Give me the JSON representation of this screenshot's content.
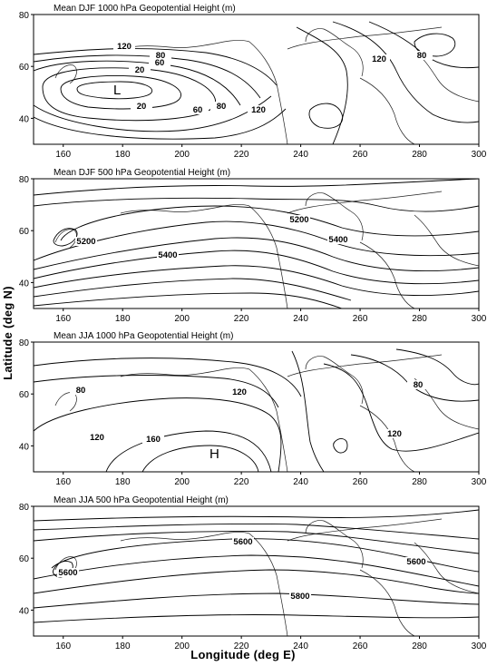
{
  "axes": {
    "ylabel": "Latitude (deg N)",
    "xlabel": "Longitude (deg E)"
  },
  "panels": [
    {
      "title": "Mean DJF 1000 hPa Geopotential Height (m)",
      "contour_labels": [
        "120",
        "80",
        "60",
        "20",
        "20",
        "60",
        "80",
        "120",
        "120",
        "80"
      ],
      "markers": [
        "L"
      ]
    },
    {
      "title": "Mean DJF 500 hPa Geopotential Height (m)",
      "contour_labels": [
        "5200",
        "5400",
        "5200",
        "5400"
      ],
      "markers": []
    },
    {
      "title": "Mean JJA 1000 hPa Geopotential Height (m)",
      "contour_labels": [
        "80",
        "120",
        "160",
        "120",
        "120",
        "80"
      ],
      "markers": [
        "H"
      ]
    },
    {
      "title": "Mean JJA 500 hPa Geopotential Height (m)",
      "contour_labels": [
        "5600",
        "5600",
        "5800",
        "5600"
      ],
      "markers": []
    }
  ],
  "chart_data": {
    "type": "contour_map",
    "x_ticks": [
      "160",
      "180",
      "200",
      "220",
      "240",
      "260",
      "280",
      "300"
    ],
    "y_ticks": [
      "40",
      "60",
      "80"
    ],
    "xlim": [
      150,
      300
    ],
    "ylim": [
      30,
      80
    ],
    "grid": false,
    "panels": [
      {
        "field": "1000 hPa",
        "season": "DJF",
        "extremum": {
          "type": "L",
          "lon": 177,
          "lat": 52
        }
      },
      {
        "field": "500 hPa",
        "season": "DJF"
      },
      {
        "field": "1000 hPa",
        "season": "JJA",
        "extremum": {
          "type": "H",
          "lon": 214,
          "lat": 38
        }
      },
      {
        "field": "500 hPa",
        "season": "JJA"
      }
    ]
  }
}
